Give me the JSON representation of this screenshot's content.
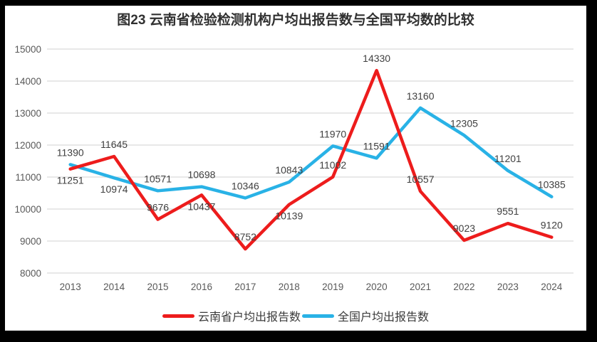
{
  "title": "图23 云南省检验检测机构户均出报告数与全国平均数的比较",
  "colors": {
    "frame_border": "#000000",
    "background": "#ffffff",
    "gridline": "#d9d9d9",
    "axis_label": "#595959",
    "data_label": "#404040",
    "yunnan_red": "#ed1c1c",
    "national_blue": "#29b2e6"
  },
  "chart_data": {
    "type": "line",
    "title": "图23 云南省检验检测机构户均出报告数与全国平均数的比较",
    "categories": [
      "2013",
      "2014",
      "2015",
      "2016",
      "2017",
      "2018",
      "2019",
      "2020",
      "2021",
      "2022",
      "2023",
      "2024"
    ],
    "series": [
      {
        "key": "national",
        "name": "全国户均出报告数",
        "color": "#29b2e6",
        "values": [
          11390,
          10974,
          10571,
          10698,
          10346,
          10843,
          11970,
          11591,
          13160,
          12305,
          11201,
          10385
        ],
        "labels_below": [
          1
        ]
      },
      {
        "key": "yunnan",
        "name": "云南省户均出报告数",
        "color": "#ed1c1c",
        "values": [
          11251,
          11645,
          9676,
          10437,
          8752,
          10139,
          11002,
          14330,
          10557,
          9023,
          9551,
          9120
        ],
        "labels_below": [
          0,
          3,
          5
        ]
      }
    ],
    "legend_order": [
      "yunnan",
      "national"
    ],
    "xlabel": "",
    "ylabel": "",
    "ylim": [
      8000,
      15000
    ],
    "ytick_step": 1000,
    "yticks": [
      8000,
      9000,
      10000,
      11000,
      12000,
      13000,
      14000,
      15000
    ],
    "grid": true,
    "legend_position": "bottom-center"
  }
}
